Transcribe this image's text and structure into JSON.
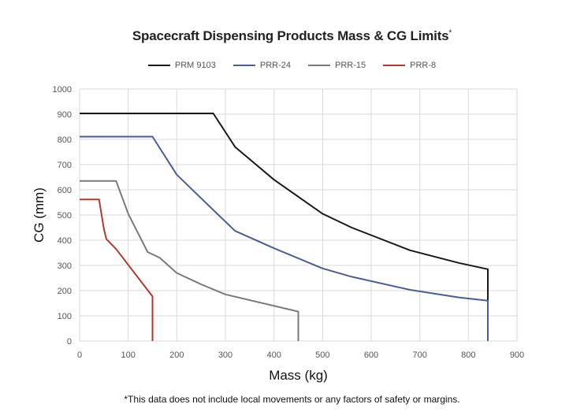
{
  "chart_data": {
    "type": "line",
    "title": "Spacecraft Dispensing Products Mass & CG Limits",
    "title_mark": "*",
    "xlabel": "Mass (kg)",
    "ylabel": "CG (mm)",
    "xlim": [
      0,
      900
    ],
    "ylim": [
      0,
      1000
    ],
    "x_ticks": [
      0,
      100,
      200,
      300,
      400,
      500,
      600,
      700,
      800,
      900
    ],
    "y_ticks": [
      0,
      100,
      200,
      300,
      400,
      500,
      600,
      700,
      800,
      900,
      1000
    ],
    "grid": true,
    "legend_position": "top",
    "series": [
      {
        "name": "PRM 9103",
        "color": "#1a1a1a",
        "points": [
          [
            0,
            903
          ],
          [
            275,
            903
          ],
          [
            320,
            770
          ],
          [
            400,
            640
          ],
          [
            500,
            505
          ],
          [
            560,
            450
          ],
          [
            680,
            360
          ],
          [
            780,
            310
          ],
          [
            840,
            285
          ],
          [
            840,
            0
          ]
        ]
      },
      {
        "name": "PRR-24",
        "color": "#4a5d95",
        "points": [
          [
            0,
            811
          ],
          [
            150,
            811
          ],
          [
            200,
            660
          ],
          [
            275,
            520
          ],
          [
            320,
            437
          ],
          [
            400,
            368
          ],
          [
            500,
            288
          ],
          [
            560,
            255
          ],
          [
            680,
            203
          ],
          [
            780,
            173
          ],
          [
            840,
            160
          ],
          [
            840,
            0
          ]
        ]
      },
      {
        "name": "PRR-15",
        "color": "#7a7a7a",
        "points": [
          [
            0,
            635
          ],
          [
            75,
            635
          ],
          [
            100,
            505
          ],
          [
            140,
            353
          ],
          [
            165,
            330
          ],
          [
            200,
            270
          ],
          [
            250,
            225
          ],
          [
            300,
            185
          ],
          [
            450,
            117
          ],
          [
            450,
            0
          ]
        ]
      },
      {
        "name": "PRR-8",
        "color": "#b03a2e",
        "points": [
          [
            0,
            562
          ],
          [
            40,
            562
          ],
          [
            50,
            445
          ],
          [
            55,
            405
          ],
          [
            75,
            365
          ],
          [
            150,
            177
          ],
          [
            150,
            0
          ]
        ]
      }
    ]
  },
  "footnote": "*This data does not include local movements or any factors of safety or margins."
}
